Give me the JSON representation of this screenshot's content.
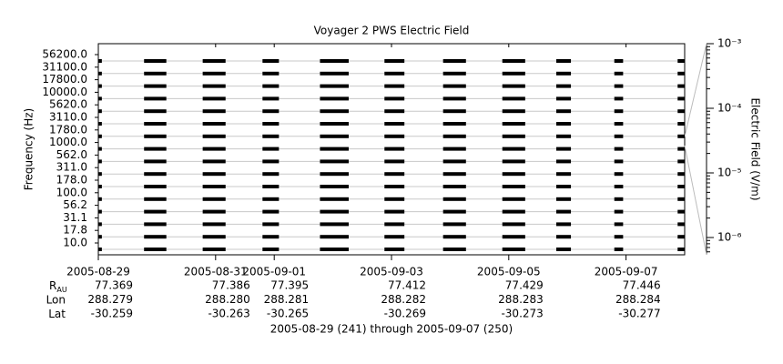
{
  "chart_data": {
    "type": "multichannel",
    "title": "Voyager 2 PWS Electric Field",
    "y_label": "Frequency (Hz)",
    "y2_label": "Electric Field (V/m)",
    "categories": [
      "56200.0",
      "31100.0",
      "17800.0",
      "10000.0",
      "5620.0",
      "3110.0",
      "1780.0",
      "1000.0",
      "562.0",
      "311.0",
      "178.0",
      "100.0",
      "56.2",
      "31.1",
      "17.8",
      "10.0"
    ],
    "segments": [
      [
        241.0,
        241.06
      ],
      [
        241.78,
        242.16
      ],
      [
        242.78,
        243.17
      ],
      [
        243.8,
        244.08
      ],
      [
        244.78,
        245.27
      ],
      [
        245.88,
        246.22
      ],
      [
        246.88,
        247.27
      ],
      [
        247.89,
        248.28
      ],
      [
        248.81,
        249.06
      ],
      [
        249.8,
        249.95
      ],
      [
        250.88,
        251.0
      ]
    ],
    "color": "#000000",
    "xlim": [
      241,
      251
    ],
    "xticks": [
      {
        "value": 241,
        "label": "2005-08-29"
      },
      {
        "value": 243,
        "label": "2005-08-31"
      },
      {
        "value": 244,
        "label": "2005-09-01"
      },
      {
        "value": 246,
        "label": "2005-09-03"
      },
      {
        "value": 248,
        "label": "2005-09-05"
      },
      {
        "value": 250,
        "label": "2005-09-07"
      }
    ],
    "y2lim": [
      5.4e-07,
      0.001
    ],
    "y2ticks": [
      {
        "value": 0.001,
        "label": "10⁻³"
      },
      {
        "value": 0.0001,
        "label": "10⁻⁴"
      },
      {
        "value": 1e-05,
        "label": "10⁻⁵"
      },
      {
        "value": 1e-06,
        "label": "10⁻⁶"
      }
    ],
    "y2_log": true,
    "ephemeris": [
      {
        "label": "R",
        "subscript": "AU",
        "values": [
          "77.369",
          "77.386",
          "77.395",
          "77.412",
          "77.429",
          "77.446"
        ]
      },
      {
        "label": "Lon",
        "values": [
          "288.279",
          "288.280",
          "288.281",
          "288.282",
          "288.283",
          "288.284"
        ]
      },
      {
        "label": "Lat",
        "values": [
          "-30.259",
          "-30.263",
          "-30.265",
          "-30.269",
          "-30.273",
          "-30.277"
        ]
      }
    ],
    "footer": "2005-08-29 (241) through 2005-09-07 (250)"
  }
}
